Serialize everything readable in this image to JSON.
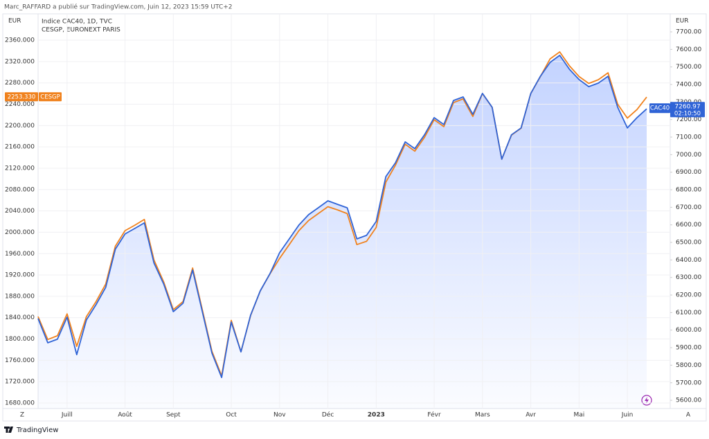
{
  "header": {
    "attribution": "Marc_RAFFARD a publié sur TradingView.com, Juin 12, 2023 15:59 UTC+2",
    "footer_brand": "TradingView",
    "scale_buttons": [
      "Z",
      "A"
    ]
  },
  "chart_data": {
    "type": "line",
    "title": "Indice CAC40, 1D, TVC",
    "subtitle": "CESGP, EURONEXT PARIS",
    "y_unit": "EUR",
    "y2_unit": "EUR",
    "categories": [
      null,
      null,
      null,
      "Juill",
      null,
      null,
      null,
      null,
      null,
      "Août",
      null,
      null,
      null,
      null,
      "Sept",
      null,
      null,
      null,
      null,
      null,
      "Oct",
      null,
      null,
      null,
      null,
      "Nov",
      null,
      null,
      null,
      null,
      "Déc",
      null,
      null,
      null,
      null,
      "2023",
      null,
      null,
      null,
      null,
      null,
      "Févr",
      null,
      null,
      null,
      null,
      "Mars",
      null,
      null,
      null,
      null,
      "Avr",
      null,
      null,
      null,
      null,
      "Mai",
      null,
      null,
      null,
      null,
      "Juin",
      null,
      null
    ],
    "series": [
      {
        "name": "CESGP",
        "color": "#f0821e",
        "values": [
          1842,
          1799,
          1806,
          1847,
          1786,
          1842,
          1870,
          1903,
          1974,
          2003,
          2013,
          2024,
          1948,
          1907,
          1855,
          1870,
          1933,
          1855,
          1777,
          1731,
          1835,
          1776,
          1844,
          1890,
          1922,
          1951,
          1977,
          2003,
          2022,
          2035,
          2048,
          2042,
          2035,
          1977,
          1983,
          2009,
          2094,
          2126,
          2165,
          2152,
          2178,
          2211,
          2198,
          2243,
          2250,
          2217,
          2260,
          2234,
          2137,
          2182,
          2195,
          2260,
          2292,
          2325,
          2338,
          2312,
          2292,
          2279,
          2286,
          2299,
          2240,
          2214,
          2230,
          2253.33
        ],
        "value_labels": [
          null,
          null,
          null,
          null,
          null,
          null,
          null,
          null,
          null,
          null,
          null,
          null,
          null,
          null,
          null,
          null,
          null,
          null,
          null,
          null,
          null,
          null,
          null,
          null,
          null,
          null,
          null,
          null,
          null,
          null,
          null,
          null,
          null,
          null,
          null,
          null,
          null,
          null,
          null,
          null,
          null,
          null,
          null,
          null,
          null,
          null,
          null,
          null,
          null,
          null,
          null,
          null,
          null,
          null,
          null,
          null,
          null,
          null,
          null,
          null,
          null,
          null,
          null,
          "2253.330"
        ]
      },
      {
        "name": "CAC40",
        "color": "#2f63d6",
        "axis": "y2",
        "countdown": "02:10:50",
        "values": [
          6066,
          5928,
          5948,
          6074,
          5860,
          6058,
          6145,
          6244,
          6461,
          6548,
          6579,
          6611,
          6382,
          6263,
          6105,
          6153,
          6342,
          6105,
          5869,
          5730,
          6046,
          5876,
          6086,
          6224,
          6322,
          6441,
          6520,
          6599,
          6658,
          6697,
          6737,
          6717,
          6697,
          6520,
          6540,
          6619,
          6875,
          6954,
          7073,
          7034,
          7113,
          7211,
          7172,
          7309,
          7329,
          7230,
          7349,
          7270,
          6974,
          7113,
          7152,
          7349,
          7447,
          7526,
          7566,
          7487,
          7428,
          7388,
          7408,
          7447,
          7270,
          7152,
          7211,
          7260.97
        ]
      }
    ],
    "ylim": [
      1669.6,
      2409.4
    ],
    "yticks": [
      {
        "value": 1680,
        "label": "1680.000"
      },
      {
        "value": 1720,
        "label": "1720.000"
      },
      {
        "value": 1760,
        "label": "1760.000"
      },
      {
        "value": 1800,
        "label": "1800.000"
      },
      {
        "value": 1840,
        "label": "1840.000"
      },
      {
        "value": 1880,
        "label": "1880.000"
      },
      {
        "value": 1920,
        "label": "1920.000"
      },
      {
        "value": 1960,
        "label": "1960.000"
      },
      {
        "value": 2000,
        "label": "2000.000"
      },
      {
        "value": 2040,
        "label": "2040.000"
      },
      {
        "value": 2080,
        "label": "2080.000"
      },
      {
        "value": 2120,
        "label": "2120.000"
      },
      {
        "value": 2160,
        "label": "2160.000"
      },
      {
        "value": 2200,
        "label": "2200.000"
      },
      {
        "value": 2240,
        "label": "2240.000"
      },
      {
        "value": 2280,
        "label": "2280.000"
      },
      {
        "value": 2320,
        "label": "2320.000"
      },
      {
        "value": 2360,
        "label": "2360.000"
      }
    ],
    "y2lim": [
      5553,
      7802.6
    ],
    "y2ticks": [
      {
        "value": 5600,
        "label": "5600.00"
      },
      {
        "value": 5700,
        "label": "5700.00"
      },
      {
        "value": 5800,
        "label": "5800.00"
      },
      {
        "value": 5900,
        "label": "5900.00"
      },
      {
        "value": 6000,
        "label": "6000.00"
      },
      {
        "value": 6100,
        "label": "6100.00"
      },
      {
        "value": 6200,
        "label": "6200.00"
      },
      {
        "value": 6300,
        "label": "6300.00"
      },
      {
        "value": 6400,
        "label": "6400.00"
      },
      {
        "value": 6500,
        "label": "6500.00"
      },
      {
        "value": 6600,
        "label": "6600.00"
      },
      {
        "value": 6700,
        "label": "6700.00"
      },
      {
        "value": 6800,
        "label": "6800.00"
      },
      {
        "value": 6900,
        "label": "6900.00"
      },
      {
        "value": 7000,
        "label": "7000.00"
      },
      {
        "value": 7100,
        "label": "7100.00"
      },
      {
        "value": 7200,
        "label": "7200.00"
      },
      {
        "value": 7300,
        "label": "7300.00"
      },
      {
        "value": 7400,
        "label": "7400.00"
      },
      {
        "value": 7500,
        "label": "7500.00"
      },
      {
        "value": 7600,
        "label": "7600.00"
      },
      {
        "value": 7700,
        "label": "7700.00"
      }
    ],
    "grid": true
  }
}
